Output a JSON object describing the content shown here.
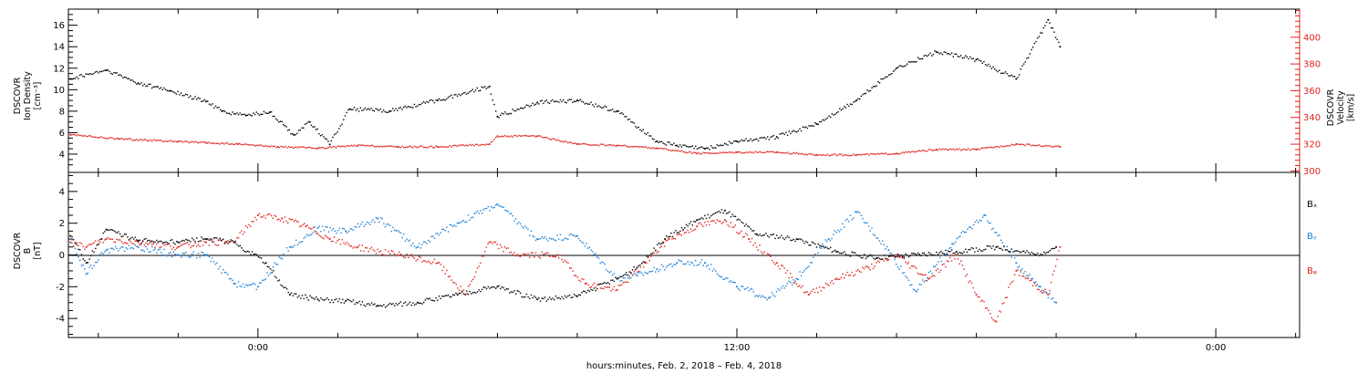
{
  "figure": {
    "xlabel": "hours:minutes, Feb.  2, 2018 – Feb.  4, 2018",
    "x_ticks": [
      "0:00",
      "12:00",
      "0:00"
    ]
  },
  "panels": {
    "top": {
      "ylabel_left_lines": [
        "DSCOVR",
        "Ion Density",
        "[cm⁻³]"
      ],
      "ylabel_right_lines": [
        "DSCOVR",
        "Velocity",
        "[km/s]"
      ],
      "left_ticks": [
        "4",
        "6",
        "8",
        "10",
        "12",
        "14",
        "16"
      ],
      "right_ticks": [
        "300",
        "320",
        "340",
        "360",
        "380",
        "400"
      ]
    },
    "bottom": {
      "ylabel_lines": [
        "DSCOVR",
        "B",
        "[nT]"
      ],
      "ticks": [
        "-4",
        "-2",
        "0",
        "2",
        "4"
      ],
      "legend": [
        "Bₓ",
        "Bᵧ",
        "Bᵩ"
      ]
    }
  },
  "colors": {
    "black": "#000000",
    "blue": "#1a7fd6",
    "red": "#e0231e",
    "axis": "#000000"
  },
  "chart_data": [
    {
      "type": "scatter",
      "x_unit": "hours since Feb 2 00:00 (UT)",
      "xlim": [
        -4.75,
        26.1
      ],
      "ylim_left": [
        2.3,
        17.5
      ],
      "ylim_right": [
        298.9,
        421
      ],
      "series": [
        {
          "name": "Ion Density",
          "axis": "left",
          "color": "#000000",
          "x": [
            -4.7,
            -3.8,
            -3.0,
            -2.2,
            -1.3,
            -0.9,
            -0.3,
            0.3,
            0.9,
            1.3,
            1.8,
            2.3,
            3.3,
            4.5,
            5.8,
            6.0,
            7.0,
            8.0,
            9.0,
            10.0,
            10.5,
            11.2,
            12.0,
            13.0,
            14.0,
            15.0,
            16.0,
            17.0,
            18.0,
            19.0,
            19.8,
            20.1
          ],
          "y": [
            11.0,
            11.8,
            10.6,
            9.9,
            8.9,
            8.0,
            7.6,
            7.9,
            5.8,
            7.0,
            4.9,
            8.2,
            8.0,
            9.0,
            10.3,
            7.5,
            8.8,
            9.0,
            8.0,
            5.2,
            4.8,
            4.5,
            5.2,
            5.6,
            6.8,
            9.0,
            12.0,
            13.5,
            12.8,
            11.0,
            16.5,
            14.0
          ]
        },
        {
          "name": "Velocity",
          "axis": "right",
          "color": "#e0231e",
          "x": [
            -4.7,
            -3.5,
            -2.0,
            -1.3,
            -0.5,
            0.5,
            1.5,
            2.5,
            3.5,
            4.5,
            5.8,
            6.0,
            7.0,
            8.0,
            9.0,
            10.0,
            11.0,
            12.0,
            13.0,
            14.0,
            15.0,
            16.0,
            17.0,
            18.0,
            19.0,
            20.1
          ],
          "y": [
            327,
            324,
            322,
            321,
            320,
            318,
            317,
            319,
            318,
            318,
            320,
            326,
            326,
            320,
            319,
            317,
            313,
            314,
            314,
            312,
            312,
            313,
            316,
            316,
            320,
            318
          ]
        }
      ]
    },
    {
      "type": "scatter",
      "x_unit": "hours since Feb 2 00:00 (UT)",
      "xlim": [
        -4.75,
        26.1
      ],
      "ylim": [
        -5.2,
        5.2
      ],
      "series": [
        {
          "name": "Bₓ",
          "color": "#000000",
          "x": [
            -4.7,
            -4.3,
            -3.8,
            -3.0,
            -2.0,
            -1.3,
            -0.6,
            0.2,
            0.8,
            1.5,
            2.2,
            3.0,
            4.0,
            5.0,
            6.0,
            7.0,
            8.0,
            9.0,
            9.5,
            10.2,
            11.0,
            11.7,
            12.5,
            13.5,
            14.5,
            15.5,
            16.5,
            17.5,
            18.5,
            19.5,
            20.0
          ],
          "y": [
            1.2,
            -0.5,
            1.6,
            0.9,
            0.8,
            1.0,
            0.8,
            -0.5,
            -2.5,
            -2.8,
            -2.9,
            -3.2,
            -3.0,
            -2.5,
            -2.0,
            -2.8,
            -2.6,
            -1.5,
            -0.8,
            1.0,
            2.2,
            2.8,
            1.3,
            1.0,
            0.2,
            -0.2,
            0.0,
            0.2,
            0.5,
            0.0,
            0.5
          ]
        },
        {
          "name": "Bᵧ",
          "color": "#1a7fd6",
          "x": [
            -4.7,
            -4.3,
            -3.8,
            -3.0,
            -2.0,
            -1.3,
            -0.6,
            0.0,
            0.8,
            1.5,
            2.2,
            3.0,
            4.0,
            5.0,
            6.0,
            7.0,
            8.0,
            9.0,
            9.5,
            10.0,
            10.5,
            11.2,
            12.0,
            12.8,
            13.5,
            14.3,
            15.0,
            15.8,
            16.5,
            17.4,
            18.2,
            19.0,
            19.6,
            20.0
          ],
          "y": [
            1.0,
            -1.2,
            0.3,
            0.5,
            0.0,
            0.0,
            -1.8,
            -2.0,
            0.5,
            1.7,
            1.5,
            2.3,
            0.5,
            2.0,
            3.2,
            1.0,
            1.2,
            -1.5,
            -1.3,
            -0.9,
            -0.5,
            -0.5,
            -2.0,
            -2.7,
            -1.5,
            1.0,
            2.7,
            0.3,
            -2.3,
            0.7,
            2.5,
            -0.5,
            -2.0,
            -3.0
          ]
        },
        {
          "name": "Bᵩ",
          "color": "#e0231e",
          "x": [
            -4.7,
            -4.3,
            -3.8,
            -3.0,
            -2.0,
            -1.3,
            -0.6,
            0.0,
            0.6,
            1.2,
            1.8,
            2.5,
            3.5,
            4.5,
            5.2,
            5.8,
            6.5,
            7.5,
            8.2,
            9.0,
            9.7,
            10.3,
            11.0,
            11.7,
            12.3,
            13.0,
            13.8,
            14.5,
            15.3,
            16.0,
            16.8,
            17.5,
            18.0,
            18.5,
            19.0,
            19.8,
            20.1
          ],
          "y": [
            0.8,
            0.5,
            1.0,
            0.8,
            0.5,
            0.8,
            0.8,
            2.5,
            2.3,
            1.8,
            1.0,
            0.5,
            0.0,
            -0.5,
            -2.5,
            0.8,
            0.0,
            0.0,
            -1.8,
            -2.2,
            -0.5,
            1.0,
            1.8,
            2.2,
            1.0,
            -0.5,
            -2.5,
            -1.5,
            -0.8,
            0.0,
            -1.5,
            0.0,
            -2.5,
            -4.2,
            -1.0,
            -2.5,
            0.5
          ]
        }
      ]
    }
  ]
}
